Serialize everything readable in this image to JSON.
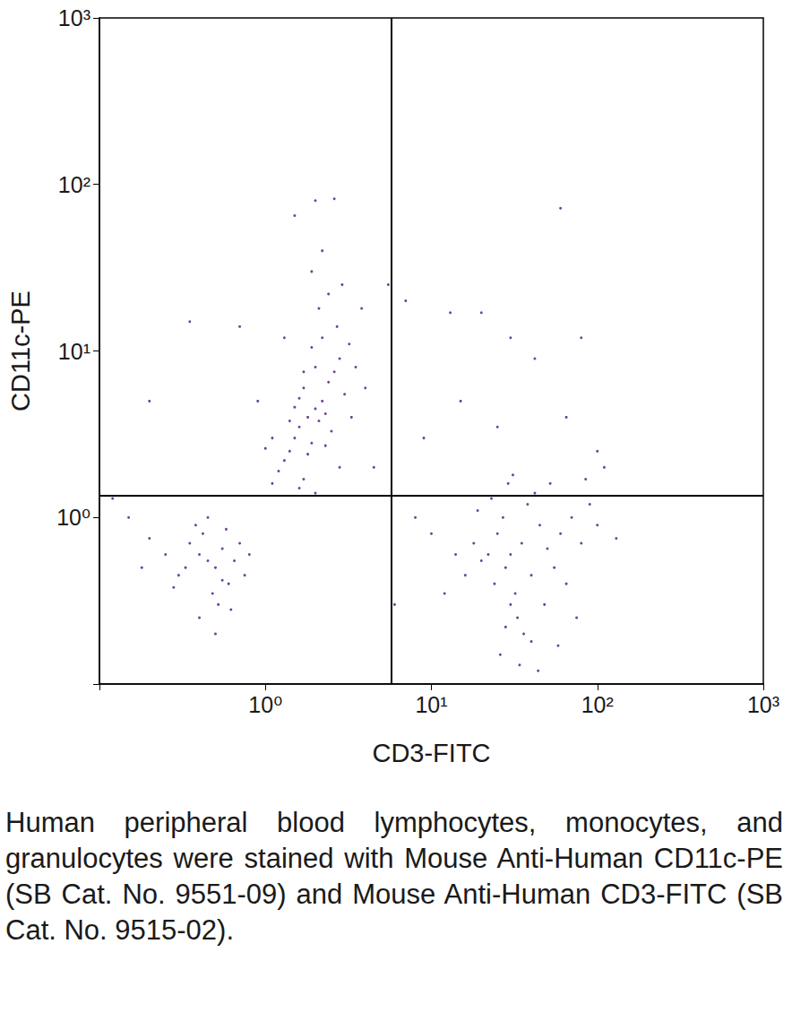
{
  "chart_data": {
    "type": "scatter",
    "x_label": "CD3-FITC",
    "y_label": "CD11c-PE",
    "x": [
      1.8,
      1.6,
      2.0,
      1.5,
      2.2,
      1.7,
      1.9,
      2.4,
      1.4,
      2.1,
      1.6,
      2.6,
      1.3,
      2.0,
      2.3,
      1.8,
      1.5,
      2.8,
      1.2,
      2.5,
      1.9,
      2.2,
      1.7,
      3.0,
      1.4,
      2.7,
      2.1,
      1.6,
      3.3,
      1.1,
      2.4,
      1.9,
      2.9,
      2.2,
      2.0,
      2.6,
      1.5,
      3.5,
      1.0,
      4.0,
      0.9,
      1.3,
      3.8,
      0.7,
      2.0,
      2.8,
      1.1,
      3.2,
      1.7,
      2.3,
      0.45,
      0.4,
      0.5,
      0.35,
      0.55,
      0.3,
      0.6,
      0.42,
      0.48,
      0.25,
      0.65,
      0.38,
      0.52,
      0.7,
      0.33,
      0.58,
      0.2,
      0.75,
      0.28,
      0.45,
      0.62,
      0.18,
      0.8,
      0.4,
      0.55,
      0.15,
      0.5,
      30,
      28,
      35,
      25,
      40,
      32,
      22,
      45,
      27,
      38,
      30,
      20,
      50,
      33,
      24,
      42,
      29,
      55,
      18,
      36,
      60,
      26,
      48,
      31,
      16,
      70,
      34,
      65,
      23,
      80,
      40,
      14,
      90,
      28,
      52,
      100,
      12,
      44,
      75,
      110,
      19,
      58,
      85,
      10,
      130,
      5.5,
      7,
      13,
      20,
      30,
      42,
      65,
      80,
      60,
      9,
      15,
      25,
      8,
      6,
      100,
      4.5,
      0.12,
      0.2,
      0.35
    ],
    "values": [
      4.0,
      3.5,
      4.5,
      3.0,
      5.0,
      6.0,
      2.8,
      6.5,
      2.5,
      3.8,
      5.2,
      7.5,
      2.2,
      8.0,
      4.2,
      2.4,
      4.6,
      9.0,
      1.9,
      3.3,
      10.5,
      12,
      1.7,
      5.5,
      3.8,
      14,
      18,
      1.5,
      4.0,
      3.0,
      22,
      30,
      25,
      40,
      80,
      82,
      65,
      8,
      2.6,
      6,
      5,
      12,
      18,
      14,
      1.4,
      2.0,
      1.6,
      11,
      7.5,
      2.7,
      0.55,
      0.6,
      0.5,
      0.7,
      0.65,
      0.45,
      0.4,
      0.8,
      0.35,
      0.6,
      0.55,
      0.9,
      0.3,
      0.7,
      0.5,
      0.85,
      0.75,
      0.45,
      0.38,
      1.0,
      0.28,
      0.5,
      0.6,
      0.25,
      0.42,
      1.0,
      0.2,
      0.6,
      0.5,
      0.7,
      0.8,
      0.45,
      0.35,
      0.6,
      0.9,
      1.0,
      1.2,
      0.3,
      0.55,
      0.65,
      0.25,
      0.4,
      1.4,
      1.6,
      0.5,
      0.7,
      0.2,
      0.8,
      0.15,
      0.3,
      1.8,
      0.45,
      1.0,
      0.13,
      0.4,
      1.3,
      0.7,
      0.18,
      0.6,
      1.2,
      0.22,
      1.6,
      0.9,
      0.35,
      0.12,
      0.25,
      2.0,
      1.1,
      0.17,
      1.7,
      0.8,
      0.75,
      25,
      20,
      17,
      17,
      12,
      9,
      4,
      12,
      72,
      3,
      5,
      3.5,
      1.0,
      0.3,
      2.5,
      2.0,
      1.3,
      5,
      15
    ],
    "color": "#4b1380",
    "marker": "circle",
    "log": true,
    "grid": false,
    "xlim": [
      0.1,
      1000
    ],
    "ylim": [
      0.1,
      1000
    ],
    "xticks": [
      {
        "value": 1,
        "label": "10⁰"
      },
      {
        "value": 10,
        "label": "10¹"
      },
      {
        "value": 100,
        "label": "10²"
      },
      {
        "value": 1000,
        "label": "10³"
      }
    ],
    "yticks": [
      {
        "value": 1,
        "label": "10⁰"
      },
      {
        "value": 10,
        "label": "10¹"
      },
      {
        "value": 100,
        "label": "10²"
      },
      {
        "value": 1000,
        "label": "10³"
      }
    ],
    "quadrant_gates": {
      "x": 5.7,
      "y": 1.36
    }
  },
  "caption": "Human peripheral blood lymphocytes, monocytes, and granulocytes were stained with Mouse Anti-Human CD11c-PE (SB Cat. No. 9551-09) and Mouse Anti-Human CD3-FITC (SB Cat. No. 9515-02)."
}
